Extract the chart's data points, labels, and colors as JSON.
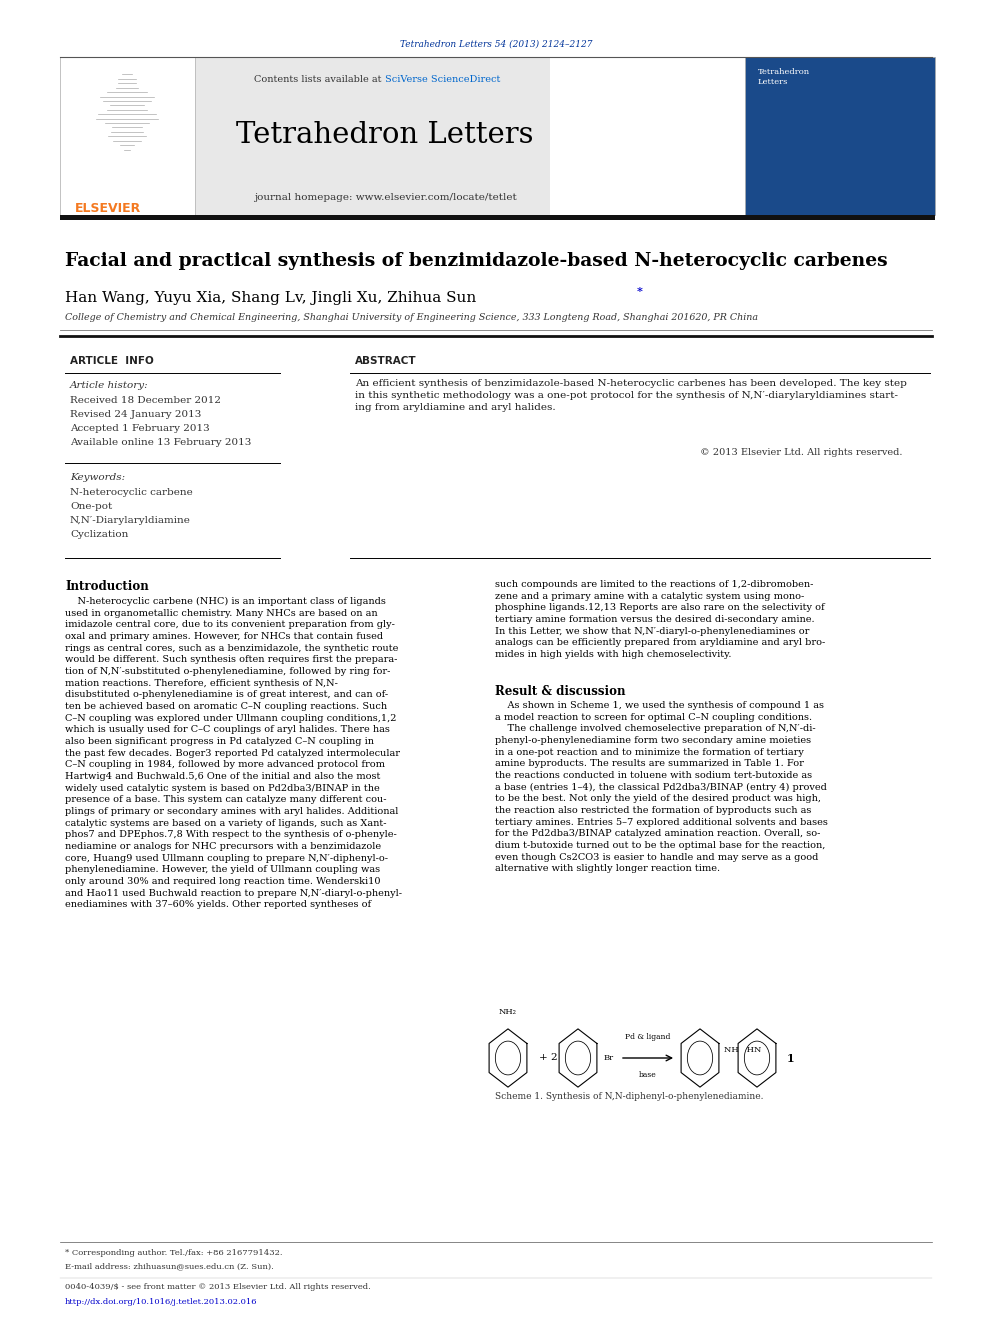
{
  "page_width": 9.92,
  "page_height": 13.23,
  "bg_color": "#ffffff",
  "top_citation": "Tetrahedron Letters 54 (2013) 2124–2127",
  "top_citation_color": "#003399",
  "journal_name": "Tetrahedron Letters",
  "journal_url": "journal homepage: www.elsevier.com/locate/tetlet",
  "contents_text": "Contents lists available at ",
  "sciverse_text": "SciVerse ScienceDirect",
  "sciverse_color": "#0066cc",
  "header_bg": "#e8e8e8",
  "thick_bar_color": "#1a1a1a",
  "orange_color": "#f47920",
  "article_title": "Facial and practical synthesis of benzimidazole-based N-heterocyclic carbenes",
  "authors_main": "Han Wang, Yuyu Xia, Shang Lv, Jingli Xu, Zhihua Sun",
  "affiliation": "College of Chemistry and Chemical Engineering, Shanghai University of Engineering Science, 333 Longteng Road, Shanghai 201620, PR China",
  "article_info_header": "ARTICLE  INFO",
  "abstract_header": "ABSTRACT",
  "article_history_label": "Article history:",
  "received": "Received 18 December 2012",
  "revised": "Revised 24 January 2013",
  "accepted": "Accepted 1 February 2013",
  "available": "Available online 13 February 2013",
  "keywords_label": "Keywords:",
  "keywords": [
    "N-heterocyclic carbene",
    "One-pot",
    "N,N′-Diarylaryldiamine",
    "Cyclization"
  ],
  "abstract_wrapped": "An efficient synthesis of benzimidazole-based N-heterocyclic carbenes has been developed. The key step\nin this synthetic methodology was a one-pot protocol for the synthesis of N,N′-diarylaryldiamines start-\ning from aryldiamine and aryl halides.",
  "copyright": "© 2013 Elsevier Ltd. All rights reserved.",
  "intro_header": "Introduction",
  "intro_left_wrapped": "    N-heterocyclic carbene (NHC) is an important class of ligands\nused in organometallic chemistry. Many NHCs are based on an\nimidazole central core, due to its convenient preparation from gly-\noxal and primary amines. However, for NHCs that contain fused\nrings as central cores, such as a benzimidazole, the synthetic route\nwould be different. Such synthesis often requires first the prepara-\ntion of N,N′-substituted o-phenylenediamine, followed by ring for-\nmation reactions. Therefore, efficient synthesis of N,N-\ndisubstituted o-phenylenediamine is of great interest, and can of-\nten be achieved based on aromatic C–N coupling reactions. Such\nC–N coupling was explored under Ullmann coupling conditions,1,2\nwhich is usually used for C–C couplings of aryl halides. There has\nalso been significant progress in Pd catalyzed C–N coupling in\nthe past few decades. Boger3 reported Pd catalyzed intermolecular\nC–N coupling in 1984, followed by more advanced protocol from\nHartwig4 and Buchwald.5,6 One of the initial and also the most\nwidely used catalytic system is based on Pd2dba3/BINAP in the\npresence of a base. This system can catalyze many different cou-\nplings of primary or secondary amines with aryl halides. Additional\ncatalytic systems are based on a variety of ligands, such as Xant-\nphos7 and DPEphos.7,8 With respect to the synthesis of o-phenyle-\nnediamine or analogs for NHC precursors with a benzimidazole\ncore, Huang9 used Ullmann coupling to prepare N,N′-diphenyl-o-\nphenylenediamine. However, the yield of Ullmann coupling was\nonly around 30% and required long reaction time. Wenderski10\nand Hao11 used Buchwald reaction to prepare N,N′-diaryl-o-phenyl-\nenediamines with 37–60% yields. Other reported syntheses of",
  "intro_right_wrapped": "such compounds are limited to the reactions of 1,2-dibromoben-\nzene and a primary amine with a catalytic system using mono-\nphosphine ligands.12,13 Reports are also rare on the selectivity of\ntertiary amine formation versus the desired di-secondary amine.\nIn this Letter, we show that N,N′-diaryl-o-phenylenediamines or\nanalogs can be efficiently prepared from aryldiamine and aryl bro-\nmides in high yields with high chemoselectivity.",
  "result_header": "Result & discussion",
  "result_text": "    As shown in Scheme 1, we used the synthesis of compound 1 as\na model reaction to screen for optimal C–N coupling conditions.\n    The challenge involved chemoselective preparation of N,N′-di-\nphenyl-o-phenylenediamine form two secondary amine moieties\nin a one-pot reaction and to minimize the formation of tertiary\namine byproducts. The results are summarized in Table 1. For\nthe reactions conducted in toluene with sodium tert-butoxide as\na base (entries 1–4), the classical Pd2dba3/BINAP (entry 4) proved\nto be the best. Not only the yield of the desired product was high,\nthe reaction also restricted the formation of byproducts such as\ntertiary amines. Entries 5–7 explored additional solvents and bases\nfor the Pd2dba3/BINAP catalyzed amination reaction. Overall, so-\ndium t-butoxide turned out to be the optimal base for the reaction,\neven though Cs2CO3 is easier to handle and may serve as a good\nalternative with slightly longer reaction time.",
  "scheme_label": "Scheme 1. Synthesis of N,N-diphenyl-o-phenylenediamine.",
  "footnote1": "* Corresponding author. Tel./fax: +86 2167791432.",
  "footnote2": "E-mail address: zhihuasun@sues.edu.cn (Z. Sun).",
  "footnote3": "0040-4039/$ - see front matter © 2013 Elsevier Ltd. All rights reserved.",
  "footnote4": "http://dx.doi.org/10.1016/j.tetlet.2013.02.016",
  "footer_url_color": "#0000cc"
}
